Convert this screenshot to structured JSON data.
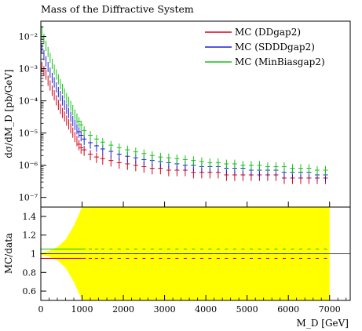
{
  "chart_data": {
    "type": "scatter",
    "title": "Mass of the Diffractive System",
    "xlabel": "M_D [GeV]",
    "ylabel": "dσ/dM_D [pb/GeV]",
    "ratio_ylabel": "MC/data",
    "xlim": [
      0,
      7500
    ],
    "ylim": [
      5e-08,
      0.03
    ],
    "ratio_ylim": [
      0.5,
      1.5
    ],
    "x_scale": "linear",
    "y_scale": "log",
    "x_ticks": [
      0,
      1000,
      2000,
      3000,
      4000,
      5000,
      6000,
      7000
    ],
    "y_ticks": [
      1e-07,
      1e-06,
      1e-05,
      0.0001,
      0.001,
      0.01
    ],
    "y_tick_labels": [
      "10⁻⁷",
      "10⁻⁶",
      "10⁻⁵",
      "10⁻⁴",
      "10⁻³",
      "10⁻²"
    ],
    "ratio_ticks": [
      0.6,
      0.8,
      1,
      1.2,
      1.4
    ],
    "legend_position": "top-right",
    "series": [
      {
        "name": "MC (DDgap2)",
        "color": "#d0021b",
        "x": [
          25,
          75,
          125,
          175,
          225,
          275,
          325,
          375,
          425,
          475,
          525,
          575,
          625,
          675,
          725,
          775,
          825,
          875,
          925,
          975,
          1050,
          1200,
          1350,
          1500,
          1700,
          1900,
          2100,
          2300,
          2500,
          2700,
          2900,
          3100,
          3300,
          3500,
          3700,
          3900,
          4100,
          4300,
          4500,
          4700,
          4900,
          5100,
          5300,
          5500,
          5700,
          5900,
          6100,
          6300,
          6500,
          6700,
          6900
        ],
        "values": [
          0.0012,
          0.0009,
          0.0007,
          0.00045,
          0.00032,
          0.00022,
          0.00016,
          0.00011,
          8e-05,
          6e-05,
          4.5e-05,
          3.5e-05,
          2.6e-05,
          2e-05,
          1.5e-05,
          1.1e-05,
          8e-06,
          6e-06,
          4.5e-06,
          3.5e-06,
          3e-06,
          2.2e-06,
          1.8e-06,
          1.6e-06,
          1.4e-06,
          1.2e-06,
          1.1e-06,
          1e-06,
          9e-07,
          8e-07,
          8e-07,
          7e-07,
          7e-07,
          7e-07,
          6e-07,
          6e-07,
          6e-07,
          6e-07,
          5e-07,
          5e-07,
          5e-07,
          5e-07,
          5e-07,
          5e-07,
          5e-07,
          4e-07,
          4e-07,
          4e-07,
          4e-07,
          4e-07,
          4e-07
        ]
      },
      {
        "name": "MC (SDDDgap2)",
        "color": "#1f1fd6",
        "x": [
          25,
          75,
          125,
          175,
          225,
          275,
          325,
          375,
          425,
          475,
          525,
          575,
          625,
          675,
          725,
          775,
          825,
          875,
          925,
          975,
          1050,
          1200,
          1350,
          1500,
          1700,
          1900,
          2100,
          2300,
          2500,
          2700,
          2900,
          3100,
          3300,
          3500,
          3700,
          3900,
          4100,
          4300,
          4500,
          4700,
          4900,
          5100,
          5300,
          5500,
          5700,
          5900,
          6100,
          6300,
          6500,
          6700,
          6900
        ],
        "values": [
          0.0045,
          0.0028,
          0.0018,
          0.0012,
          0.0008,
          0.00055,
          0.0004,
          0.00028,
          0.0002,
          0.00015,
          0.00011,
          8e-05,
          6e-05,
          4.5e-05,
          3.4e-05,
          2.5e-05,
          1.9e-05,
          1.4e-05,
          1.1e-05,
          8.5e-06,
          6.5e-06,
          5e-06,
          4e-06,
          3.2e-06,
          2.7e-06,
          2.2e-06,
          1.9e-06,
          1.7e-06,
          1.5e-06,
          1.4e-06,
          1.3e-06,
          1.2e-06,
          1.1e-06,
          1e-06,
          1e-06,
          9e-07,
          9e-07,
          9e-07,
          8e-07,
          8e-07,
          8e-07,
          7e-07,
          7e-07,
          7e-07,
          7e-07,
          6e-07,
          6e-07,
          6e-07,
          6e-07,
          5e-07,
          5e-07
        ]
      },
      {
        "name": "MC (MinBiasgap2)",
        "color": "#17c217",
        "x": [
          25,
          75,
          125,
          175,
          225,
          275,
          325,
          375,
          425,
          475,
          525,
          575,
          625,
          675,
          725,
          775,
          825,
          875,
          925,
          975,
          1050,
          1200,
          1350,
          1500,
          1700,
          1900,
          2100,
          2300,
          2500,
          2700,
          2900,
          3100,
          3300,
          3500,
          3700,
          3900,
          4100,
          4300,
          4500,
          4700,
          4900,
          5100,
          5300,
          5500,
          5700,
          5900,
          6100,
          6300,
          6500,
          6700,
          6900
        ],
        "values": [
          0.016,
          0.009,
          0.0055,
          0.0035,
          0.0023,
          0.0015,
          0.001,
          0.0007,
          0.0005,
          0.00035,
          0.00025,
          0.00018,
          0.00013,
          0.0001,
          7.5e-05,
          5.5e-05,
          4e-05,
          3e-05,
          2.3e-05,
          1.8e-05,
          1.2e-05,
          8.5e-06,
          6.5e-06,
          5.2e-06,
          4.2e-06,
          3.5e-06,
          3e-06,
          2.6e-06,
          2.3e-06,
          2e-06,
          1.8e-06,
          1.7e-06,
          1.6e-06,
          1.5e-06,
          1.4e-06,
          1.3e-06,
          1.2e-06,
          1.2e-06,
          1.1e-06,
          1.1e-06,
          1e-06,
          1e-06,
          1e-06,
          9e-07,
          9e-07,
          9e-07,
          8e-07,
          8e-07,
          8e-07,
          7e-07,
          7e-07
        ]
      }
    ],
    "ratio_band": {
      "color": "#ffff00",
      "x": [
        0,
        200,
        400,
        600,
        800,
        1000,
        1200,
        1400,
        7000
      ],
      "half_width": [
        0.01,
        0.03,
        0.07,
        0.15,
        0.3,
        0.5,
        0.5,
        0.5,
        0.5
      ]
    }
  }
}
